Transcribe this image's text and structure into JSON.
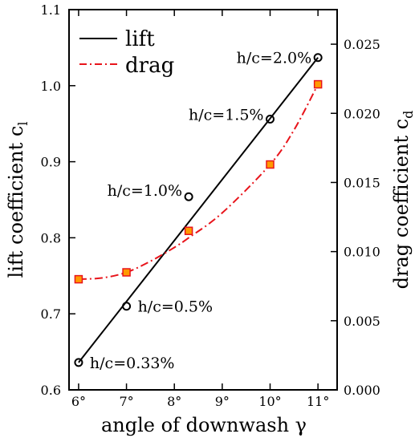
{
  "chart_data": {
    "type": "scatter",
    "title": "",
    "xlabel": "angle of downwash γ",
    "ylabel_left_text": "lift coefficient c",
    "ylabel_left_sub": "l",
    "ylabel_right_text": "drag coefficient c",
    "ylabel_right_sub": "d",
    "xlim": [
      5.8,
      11.4
    ],
    "ylim_left": [
      0.6,
      1.1
    ],
    "ylim_right": [
      0.0,
      0.0275
    ],
    "x_ticks": [
      6,
      7,
      8,
      9,
      10,
      11
    ],
    "x_tick_labels": [
      "6°",
      "7°",
      "8°",
      "9°",
      "10°",
      "11°"
    ],
    "y_left_ticks": [
      0.6,
      0.7,
      0.8,
      0.9,
      1.0,
      1.1
    ],
    "y_left_tick_labels": [
      "0.6",
      "0.7",
      "0.8",
      "0.9",
      "1.0",
      "1.1"
    ],
    "y_right_ticks": [
      0.0,
      0.005,
      0.01,
      0.015,
      0.02,
      0.025
    ],
    "y_right_tick_labels": [
      "0.000",
      "0.005",
      "0.010",
      "0.015",
      "0.020",
      "0.025"
    ],
    "grid": false,
    "legend_position": "top-left",
    "legend": [
      {
        "label": "lift",
        "color": "#000000",
        "style": "solid"
      },
      {
        "label": "drag",
        "color": "#e8141b",
        "style": "dash-dot"
      }
    ],
    "lift_points": {
      "x": [
        6.0,
        7.0,
        8.3,
        10.0,
        11.0
      ],
      "y": [
        0.636,
        0.71,
        0.854,
        0.956,
        1.037
      ],
      "labels": [
        "h/c=0.33%",
        "h/c=0.5%",
        "h/c=1.0%",
        "h/c=1.5%",
        "h/c=2.0%"
      ]
    },
    "lift_fit": {
      "x": [
        6.0,
        11.0
      ],
      "y": [
        0.636,
        1.037
      ]
    },
    "drag_points": {
      "x": [
        6.0,
        7.0,
        8.3,
        10.0,
        11.0
      ],
      "y": [
        0.008,
        0.0085,
        0.0115,
        0.0163,
        0.0221
      ]
    },
    "drag_fit": {
      "x": [
        6.0,
        6.5,
        7.0,
        7.5,
        8.0,
        8.3,
        9.0,
        10.0,
        10.5,
        11.0
      ],
      "y": [
        0.008,
        0.0081,
        0.0085,
        0.0093,
        0.0103,
        0.011,
        0.0128,
        0.0163,
        0.0188,
        0.0221
      ]
    },
    "colors": {
      "lift": "#000000",
      "drag_line": "#e8141b",
      "drag_marker_fill": "#ff9a00",
      "drag_marker_edge": "#e8141b"
    }
  }
}
